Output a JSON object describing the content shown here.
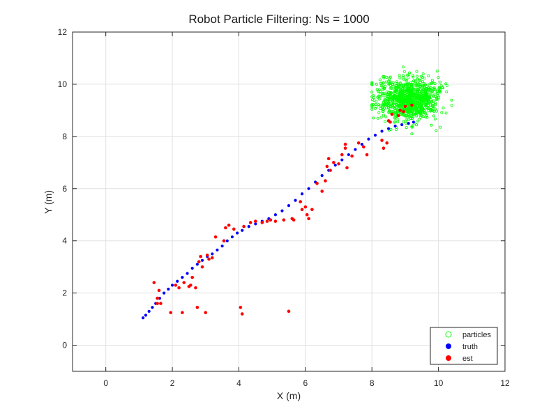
{
  "chart_data": {
    "type": "scatter",
    "title": "Robot Particle Filtering: Ns = 1000",
    "xlabel": "X (m)",
    "ylabel": "Y (m)",
    "xlim": [
      -1,
      12
    ],
    "ylim": [
      -1,
      12
    ],
    "xticks": [
      0,
      2,
      4,
      6,
      8,
      10,
      12
    ],
    "yticks": [
      0,
      2,
      4,
      6,
      8,
      10,
      12
    ],
    "grid": true,
    "legend_position": "bottom-right",
    "legend": [
      "particles",
      "truth",
      "est"
    ],
    "colors": {
      "particles": "#00ff00",
      "truth": "#0000ff",
      "est": "#ff0000",
      "grid": "#e0e0e0",
      "axes": "#262626"
    },
    "series": [
      {
        "name": "particles",
        "marker": "open-circle",
        "color": "#00ff00",
        "count": 1000,
        "center": [
          9.1,
          9.4
        ],
        "spread": [
          0.5,
          0.5
        ],
        "x_range": [
          8.0,
          10.4
        ],
        "y_range": [
          8.1,
          11.2
        ]
      },
      {
        "name": "truth",
        "marker": "filled-circle",
        "color": "#0000ff",
        "x": [
          1.12,
          1.2,
          1.3,
          1.4,
          1.5,
          1.62,
          1.75,
          1.88,
          2.0,
          2.15,
          2.3,
          2.45,
          2.6,
          2.75,
          2.9,
          3.05,
          3.2,
          3.35,
          3.5,
          3.65,
          3.8,
          3.95,
          4.1,
          4.3,
          4.5,
          4.7,
          4.9,
          5.1,
          5.3,
          5.5,
          5.7,
          5.9,
          6.1,
          6.3,
          6.5,
          6.7,
          6.9,
          7.1,
          7.3,
          7.5,
          7.7,
          7.9,
          8.1,
          8.3,
          8.5,
          8.7,
          8.9,
          9.1,
          9.25
        ],
        "y": [
          1.05,
          1.15,
          1.3,
          1.45,
          1.6,
          1.8,
          2.0,
          2.15,
          2.3,
          2.45,
          2.6,
          2.75,
          2.95,
          3.1,
          3.25,
          3.4,
          3.5,
          3.65,
          3.8,
          4.0,
          4.15,
          4.3,
          4.4,
          4.55,
          4.65,
          4.75,
          4.85,
          5.0,
          5.15,
          5.35,
          5.55,
          5.8,
          6.0,
          6.25,
          6.5,
          6.7,
          6.9,
          7.1,
          7.3,
          7.5,
          7.7,
          7.9,
          8.05,
          8.2,
          8.3,
          8.4,
          8.45,
          8.5,
          8.55
        ]
      },
      {
        "name": "est",
        "marker": "filled-circle",
        "color": "#ff0000",
        "x": [
          1.45,
          1.55,
          1.55,
          1.6,
          1.65,
          1.95,
          2.1,
          2.2,
          2.3,
          2.35,
          2.5,
          2.55,
          2.6,
          2.7,
          2.75,
          2.8,
          2.85,
          2.9,
          3.0,
          3.05,
          3.1,
          3.2,
          3.3,
          3.55,
          3.6,
          3.7,
          3.85,
          4.05,
          4.1,
          4.15,
          4.35,
          4.5,
          4.7,
          4.85,
          4.95,
          5.1,
          5.35,
          5.5,
          5.6,
          5.65,
          5.85,
          5.9,
          6.0,
          6.05,
          6.1,
          6.2,
          6.35,
          6.5,
          6.6,
          6.65,
          6.7,
          6.75,
          6.85,
          7.0,
          7.1,
          7.2,
          7.2,
          7.25,
          7.4,
          7.6,
          7.75,
          7.85,
          8.3,
          8.35,
          8.45,
          8.5,
          8.55,
          8.6,
          8.8,
          8.85,
          8.95,
          9.0,
          9.2
        ],
        "y": [
          2.4,
          1.6,
          1.8,
          2.1,
          1.6,
          1.25,
          2.3,
          2.2,
          1.25,
          2.4,
          2.25,
          2.3,
          2.6,
          2.2,
          1.45,
          3.2,
          3.4,
          3.0,
          1.25,
          3.45,
          3.3,
          3.35,
          4.15,
          4.0,
          4.5,
          4.6,
          4.45,
          1.45,
          1.2,
          4.55,
          4.7,
          4.75,
          4.7,
          4.75,
          4.8,
          4.75,
          4.8,
          1.3,
          4.85,
          4.8,
          5.5,
          5.2,
          5.3,
          5.0,
          4.85,
          5.2,
          6.2,
          5.9,
          6.3,
          6.85,
          7.15,
          6.7,
          7.0,
          6.95,
          7.3,
          7.55,
          7.7,
          6.8,
          7.25,
          7.75,
          7.6,
          7.3,
          7.85,
          7.55,
          7.75,
          8.6,
          8.55,
          8.85,
          8.8,
          9.0,
          8.95,
          9.15,
          9.2
        ]
      }
    ]
  }
}
